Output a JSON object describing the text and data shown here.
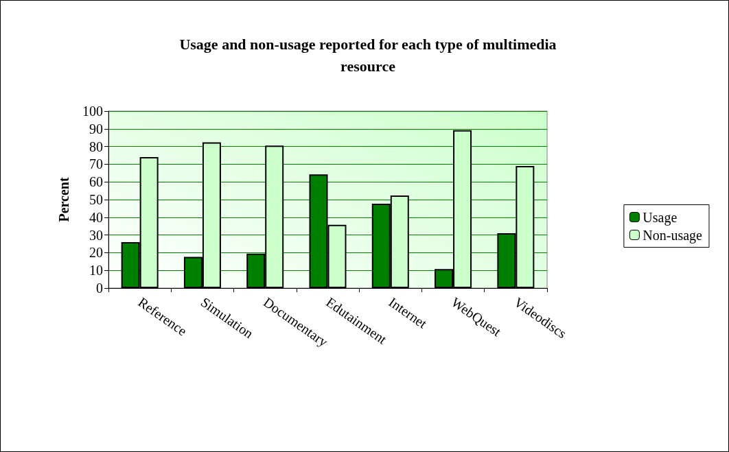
{
  "chart_data": {
    "type": "bar",
    "title": "Usage and non-usage reported for each type of multimedia\nresource",
    "ylabel": "Percent",
    "categories": [
      "Reference",
      "Simulation",
      "Documentary",
      "Edutainment",
      "Internet",
      "WebQuest",
      "Videodiscs"
    ],
    "series": [
      {
        "name": "Usage",
        "color": "#008000",
        "values": [
          26,
          17.6,
          19.5,
          64.2,
          47.7,
          10.8,
          31
        ]
      },
      {
        "name": "Non-usage",
        "color": "#ccffcc",
        "values": [
          74,
          82.4,
          80.5,
          35.8,
          52.3,
          89.2,
          69
        ]
      }
    ],
    "ylim": [
      0,
      100
    ],
    "yticks": [
      0,
      10,
      20,
      30,
      40,
      50,
      60,
      70,
      80,
      90,
      100
    ],
    "grid": "y",
    "legend": "right"
  }
}
